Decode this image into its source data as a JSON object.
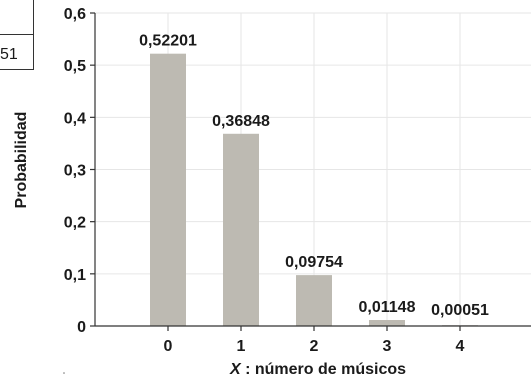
{
  "chart_data": {
    "type": "bar",
    "categories": [
      "0",
      "1",
      "2",
      "3",
      "4"
    ],
    "values": [
      0.52201,
      0.36848,
      0.09754,
      0.01148,
      0.00051
    ],
    "data_labels": [
      "0,52201",
      "0,36848",
      "0,09754",
      "0,01148",
      "0,00051"
    ],
    "ylabel": "Probabilidad",
    "xlabel_var": "X",
    "xlabel_rest": " : número de músicos",
    "ylim": [
      0,
      0.6
    ],
    "yticks": [
      0,
      0.1,
      0.2,
      0.3,
      0.4,
      0.5,
      0.6
    ],
    "ytick_labels": [
      "0",
      "0,1",
      "0,2",
      "0,3",
      "0,4",
      "0,5",
      "0,6"
    ],
    "grid": true,
    "colors": {
      "bar": "#bdbab2",
      "grid": "#e6e6e6",
      "axis": "#333333",
      "bg": "#ffffff"
    }
  },
  "left_fragment": {
    "text": "51"
  }
}
